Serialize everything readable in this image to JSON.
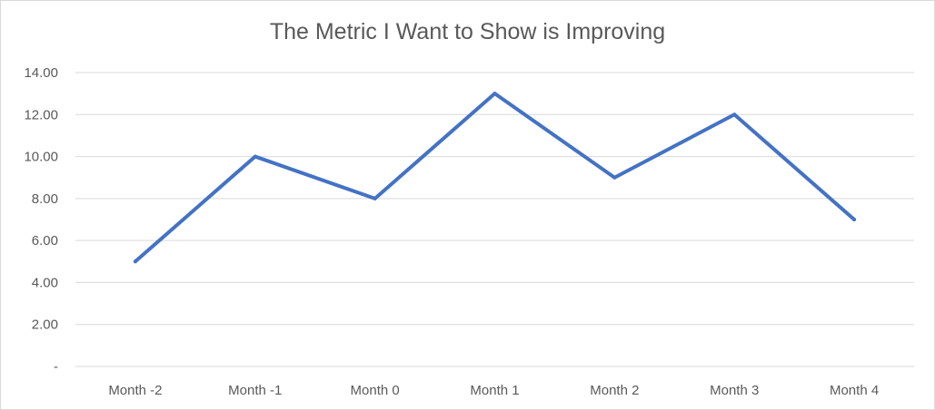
{
  "chart_data": {
    "type": "line",
    "title": "The Metric I Want to Show is Improving",
    "categories": [
      "Month -2",
      "Month -1",
      "Month 0",
      "Month 1",
      "Month 2",
      "Month 3",
      "Month 4"
    ],
    "series": [
      {
        "values": [
          5,
          10,
          8,
          13,
          9,
          12,
          7
        ]
      }
    ],
    "yticks": [
      "-",
      "2.00",
      "4.00",
      "6.00",
      "8.00",
      "10.00",
      "12.00",
      "14.00"
    ],
    "ylim": [
      0,
      14
    ],
    "grid": true,
    "legend": "none",
    "line_color": "#4472c4",
    "grid_color": "#d9d9d9"
  }
}
